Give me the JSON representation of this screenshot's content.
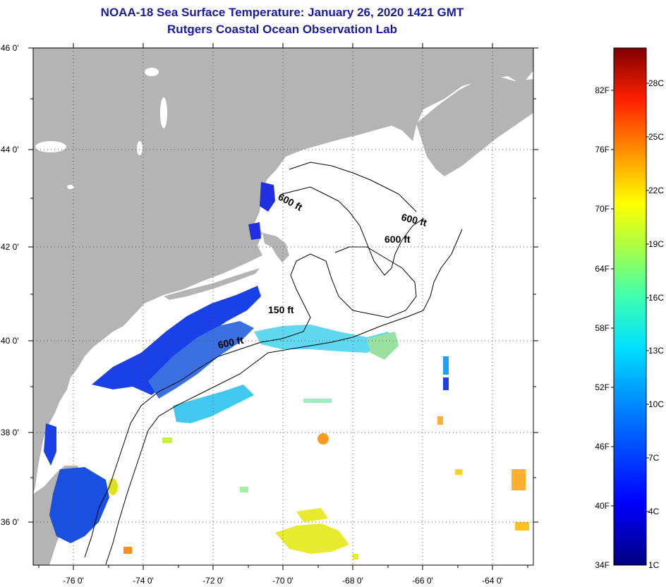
{
  "header": {
    "title": "NOAA-18 Sea Surface Temperature:  January 26, 2020 1421 GMT",
    "subtitle": "Rutgers Coastal Ocean Observation Lab"
  },
  "map": {
    "lat_labels": [
      "46 0'",
      "44 0'",
      "42 0'",
      "40 0'",
      "38 0'",
      "36 0'"
    ],
    "lon_labels": [
      "-76 0'",
      "-74 0'",
      "-72 0'",
      "-70 0'",
      "-68 0'",
      "-66 0'",
      "-64 0'"
    ],
    "isobath_labels": [
      "600 ft",
      "600 ft",
      "600 ft",
      "150 ft",
      "600 ft"
    ],
    "colors": {
      "land": "#b4b4b4",
      "frame": "#000000",
      "grid": "#555555"
    }
  },
  "colorbar": {
    "fahrenheit_labels": [
      "82F",
      "76F",
      "70F",
      "64F",
      "58F",
      "52F",
      "46F",
      "40F",
      "34F"
    ],
    "celsius_labels": [
      "28C",
      "25C",
      "22C",
      "19C",
      "16C",
      "13C",
      "10C",
      "7C",
      "4C",
      "1C"
    ]
  }
}
